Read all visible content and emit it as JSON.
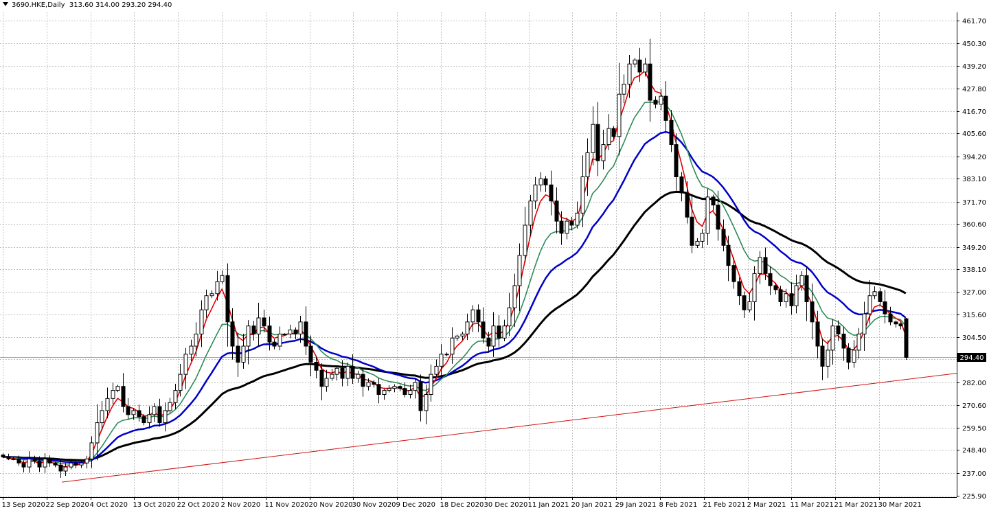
{
  "header": {
    "symbol": "3690.HKE,Daily",
    "ohlc": "313.60 314.00 293.20 294.40"
  },
  "current_price_label": "294.40",
  "colors": {
    "candle_up_body": "#ffffff",
    "candle_down_body": "#000000",
    "ma_fast": "#e00000",
    "ma_medium": "#2e8b57",
    "ma_slow": "#0000c8",
    "ma_long": "#000000",
    "trendline": "#d01010",
    "grid": "#c0c0c0"
  },
  "chart_data": {
    "type": "candlestick",
    "x_tick_labels": [
      "13 Sep 2020",
      "22 Sep 2020",
      "4 Oct 2020",
      "13 Oct 2020",
      "22 Oct 2020",
      "2 Nov 2020",
      "11 Nov 2020",
      "20 Nov 2020",
      "30 Nov 2020",
      "9 Dec 2020",
      "18 Dec 2020",
      "30 Dec 2020",
      "11 Jan 2021",
      "20 Jan 2021",
      "29 Jan 2021",
      "8 Feb 2021",
      "21 Feb 2021",
      "2 Mar 2021",
      "11 Mar 2021",
      "21 Mar 2021",
      "30 Mar 2021"
    ],
    "y_tick_labels": [
      "461.70",
      "450.30",
      "439.20",
      "427.80",
      "416.70",
      "405.60",
      "394.20",
      "383.10",
      "371.70",
      "360.60",
      "349.20",
      "338.10",
      "327.00",
      "315.60",
      "304.50",
      "293.40",
      "282.00",
      "270.60",
      "259.50",
      "248.40",
      "237.00",
      "225.90"
    ],
    "ylim": [
      225.9,
      461.7
    ],
    "grid": true,
    "last_close": 294.4,
    "closes": [
      245,
      244,
      244,
      242,
      240,
      244,
      243,
      240,
      244,
      242,
      241,
      238,
      240,
      242,
      241,
      242,
      244,
      252,
      262,
      268,
      274,
      278,
      280,
      270,
      266,
      268,
      265,
      262,
      266,
      270,
      262,
      268,
      272,
      278,
      286,
      296,
      300,
      306,
      318,
      325,
      326,
      332,
      335,
      312,
      300,
      292,
      300,
      310,
      306,
      314,
      310,
      302,
      300,
      306,
      306,
      308,
      306,
      312,
      300,
      292,
      288,
      280,
      284,
      286,
      289,
      284,
      290,
      284,
      286,
      280,
      282,
      281,
      276,
      278,
      279,
      280,
      279,
      276,
      278,
      282,
      268,
      276,
      286,
      290,
      296,
      296,
      304,
      305,
      306,
      312,
      318,
      312,
      304,
      300,
      310,
      304,
      310,
      319,
      330,
      345,
      360,
      372,
      380,
      383,
      380,
      372,
      362,
      356,
      362,
      360,
      366,
      384,
      396,
      410,
      392,
      400,
      408,
      404,
      425,
      430,
      440,
      442,
      436,
      440,
      422,
      420,
      424,
      412,
      400,
      384,
      376,
      364,
      350,
      352,
      356,
      374,
      370,
      358,
      350,
      340,
      332,
      325,
      318,
      322,
      336,
      344,
      336,
      330,
      328,
      322,
      326,
      320,
      330,
      335,
      322,
      312,
      300,
      290,
      298,
      310,
      306,
      299,
      292,
      298,
      306,
      316,
      325,
      327,
      322,
      316,
      312,
      311,
      310,
      294.4
    ],
    "moving_averages": [
      "fast (red)",
      "medium (green)",
      "slow (blue)",
      "long (black)"
    ],
    "trendline": "support line from 22 Sep 2020 low rising to the right edge"
  }
}
